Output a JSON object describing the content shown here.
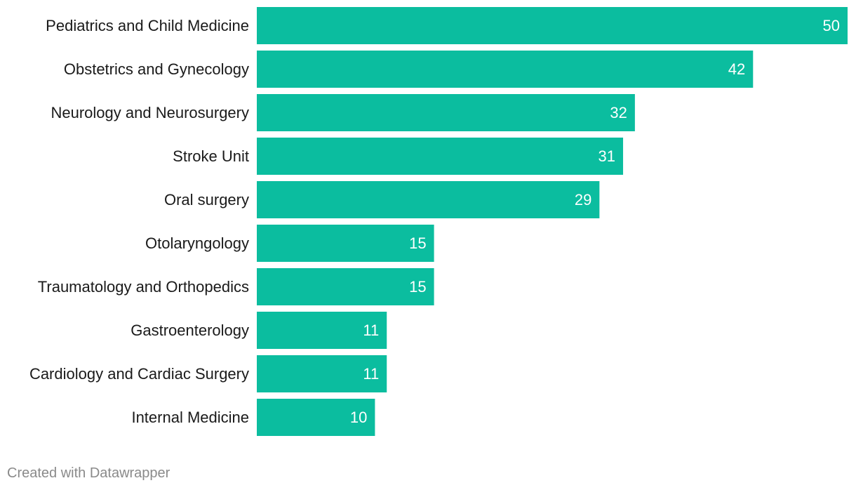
{
  "chart_data": {
    "type": "bar",
    "orientation": "horizontal",
    "categories": [
      "Pediatrics and Child Medicine",
      "Obstetrics and Gynecology",
      "Neurology and Neurosurgery",
      "Stroke Unit",
      "Oral surgery",
      "Otolaryngology",
      "Traumatology and Orthopedics",
      "Gastroenterology",
      "Cardiology and Cardiac Surgery",
      "Internal Medicine"
    ],
    "values": [
      50,
      42,
      32,
      31,
      29,
      15,
      15,
      11,
      11,
      10
    ],
    "xlim": [
      0,
      50
    ],
    "grid": false,
    "legend": "none",
    "bar_color": "#0bbd9f",
    "data_label_color": "#ffffff"
  },
  "footer": {
    "credit": "Created with Datawrapper"
  }
}
